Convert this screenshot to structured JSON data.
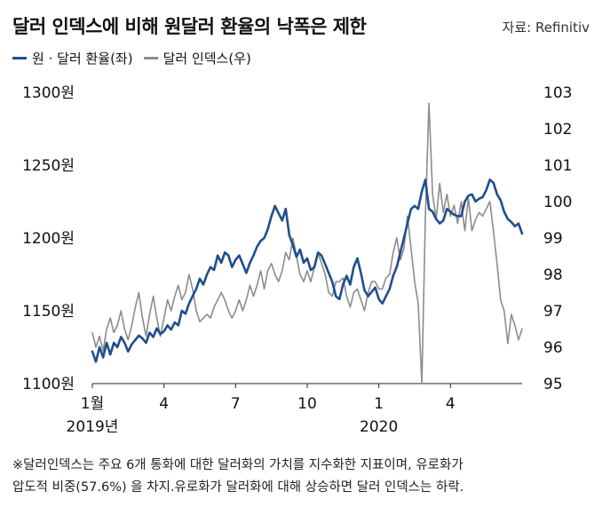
{
  "title": "달러 인덱스에 비해 원달러 환율의 낙폭은 제한",
  "source": "자료: Refinitiv",
  "colors": {
    "krw": "#1f4e8c",
    "dxy": "#8c8c8c"
  },
  "note_lines": [
    "※달러인덱스는 주요 6개 통화에 대한 달러화의 가치를 지수화한 지표이며, 유로화가",
    "압도적 비중(57.6%) 을 차지.유로화가 달러화에 대해 상승하면 달러 인덱스는 하락."
  ],
  "chart_data": {
    "type": "line",
    "title": "달러 인덱스에 비해 원달러 환율의 낙폭은 제한",
    "x_ticks": [
      {
        "label": "1월",
        "sublabel": "2019년",
        "t": 0
      },
      {
        "label": "4",
        "t": 3
      },
      {
        "label": "7",
        "t": 6
      },
      {
        "label": "10",
        "t": 9
      },
      {
        "label": "1",
        "sublabel": "2020",
        "t": 12
      },
      {
        "label": "4",
        "t": 15
      }
    ],
    "x_range": [
      0,
      18
    ],
    "y_left": {
      "ticks": [
        "1300원",
        "1250원",
        "1200원",
        "1150원",
        "1100원"
      ],
      "values": [
        1300,
        1250,
        1200,
        1150,
        1100
      ],
      "range": [
        1100,
        1300
      ]
    },
    "y_right": {
      "ticks": [
        "103",
        "102",
        "101",
        "100",
        "99",
        "98",
        "97",
        "96",
        "95"
      ],
      "values": [
        103,
        102,
        101,
        100,
        99,
        98,
        97,
        96,
        95
      ],
      "range": [
        95,
        103
      ]
    },
    "series": [
      {
        "name": "원 · 달러 환율(좌)",
        "axis": "left",
        "x": [
          0.0,
          0.15,
          0.3,
          0.45,
          0.6,
          0.75,
          0.9,
          1.05,
          1.2,
          1.35,
          1.5,
          1.65,
          1.8,
          1.95,
          2.1,
          2.25,
          2.4,
          2.55,
          2.7,
          2.85,
          3.0,
          3.15,
          3.3,
          3.45,
          3.6,
          3.75,
          3.9,
          4.05,
          4.2,
          4.35,
          4.5,
          4.65,
          4.8,
          4.95,
          5.1,
          5.25,
          5.4,
          5.55,
          5.7,
          5.85,
          6.0,
          6.15,
          6.3,
          6.45,
          6.6,
          6.75,
          6.9,
          7.05,
          7.2,
          7.35,
          7.5,
          7.65,
          7.8,
          7.95,
          8.1,
          8.25,
          8.4,
          8.55,
          8.7,
          8.85,
          9.0,
          9.15,
          9.3,
          9.45,
          9.6,
          9.75,
          9.9,
          10.05,
          10.2,
          10.35,
          10.5,
          10.65,
          10.8,
          10.95,
          11.1,
          11.25,
          11.4,
          11.55,
          11.7,
          11.85,
          12.0,
          12.15,
          12.3,
          12.45,
          12.6,
          12.75,
          12.9,
          13.05,
          13.2,
          13.35,
          13.5,
          13.65,
          13.8,
          13.95,
          14.1,
          14.25,
          14.4,
          14.55,
          14.7,
          14.85,
          15.0,
          15.15,
          15.3,
          15.45,
          15.6,
          15.75,
          15.9,
          16.05,
          16.2,
          16.35,
          16.5,
          16.65,
          16.8,
          16.95,
          17.1,
          17.25,
          17.4,
          17.55,
          17.7,
          17.85,
          18.0
        ],
        "values": [
          1122,
          1115,
          1125,
          1118,
          1128,
          1120,
          1128,
          1125,
          1132,
          1128,
          1122,
          1127,
          1130,
          1133,
          1131,
          1128,
          1135,
          1132,
          1138,
          1134,
          1136,
          1140,
          1137,
          1142,
          1140,
          1150,
          1148,
          1155,
          1160,
          1165,
          1172,
          1168,
          1175,
          1180,
          1178,
          1188,
          1183,
          1190,
          1188,
          1180,
          1185,
          1188,
          1182,
          1176,
          1183,
          1188,
          1194,
          1198,
          1200,
          1206,
          1215,
          1222,
          1217,
          1212,
          1220,
          1202,
          1195,
          1187,
          1192,
          1183,
          1186,
          1178,
          1180,
          1190,
          1188,
          1182,
          1176,
          1170,
          1160,
          1158,
          1168,
          1174,
          1168,
          1180,
          1186,
          1176,
          1164,
          1160,
          1163,
          1166,
          1158,
          1155,
          1160,
          1165,
          1174,
          1180,
          1190,
          1200,
          1210,
          1220,
          1222,
          1220,
          1232,
          1240,
          1220,
          1218,
          1213,
          1210,
          1212,
          1220,
          1218,
          1216,
          1215,
          1215,
          1225,
          1229,
          1230,
          1225,
          1227,
          1228,
          1233,
          1240,
          1238,
          1230,
          1226,
          1218,
          1213,
          1211,
          1208,
          1210,
          1203
        ]
      },
      {
        "name": "달러 인덱스(우)",
        "axis": "right",
        "x": [
          0.0,
          0.15,
          0.3,
          0.45,
          0.6,
          0.75,
          0.9,
          1.05,
          1.2,
          1.35,
          1.5,
          1.65,
          1.8,
          1.95,
          2.1,
          2.25,
          2.4,
          2.55,
          2.7,
          2.85,
          3.0,
          3.15,
          3.3,
          3.45,
          3.6,
          3.75,
          3.9,
          4.05,
          4.2,
          4.35,
          4.5,
          4.65,
          4.8,
          4.95,
          5.1,
          5.25,
          5.4,
          5.55,
          5.7,
          5.85,
          6.0,
          6.15,
          6.3,
          6.45,
          6.6,
          6.75,
          6.9,
          7.05,
          7.2,
          7.35,
          7.5,
          7.65,
          7.8,
          7.95,
          8.1,
          8.25,
          8.4,
          8.55,
          8.7,
          8.85,
          9.0,
          9.15,
          9.3,
          9.45,
          9.6,
          9.75,
          9.9,
          10.05,
          10.2,
          10.35,
          10.5,
          10.65,
          10.8,
          10.95,
          11.1,
          11.25,
          11.4,
          11.55,
          11.7,
          11.85,
          12.0,
          12.15,
          12.3,
          12.45,
          12.6,
          12.75,
          12.9,
          13.05,
          13.2,
          13.35,
          13.5,
          13.65,
          13.8,
          13.95,
          14.1,
          14.25,
          14.4,
          14.55,
          14.7,
          14.85,
          15.0,
          15.15,
          15.3,
          15.45,
          15.6,
          15.75,
          15.9,
          16.05,
          16.2,
          16.35,
          16.5,
          16.65,
          16.8,
          16.95,
          17.1,
          17.25,
          17.4,
          17.55,
          17.7,
          17.85,
          18.0
        ],
        "values": [
          96.4,
          96.0,
          96.3,
          95.9,
          96.5,
          96.8,
          96.4,
          96.6,
          97.0,
          96.5,
          96.2,
          96.6,
          97.1,
          97.5,
          96.8,
          96.3,
          96.9,
          97.4,
          96.8,
          96.3,
          96.8,
          97.3,
          97.0,
          97.4,
          97.7,
          97.3,
          97.5,
          98.0,
          97.6,
          97.0,
          96.7,
          96.8,
          96.9,
          96.8,
          97.1,
          97.3,
          97.5,
          97.3,
          97.0,
          96.8,
          97.0,
          97.3,
          97.0,
          97.3,
          97.7,
          97.4,
          97.7,
          98.1,
          97.6,
          98.1,
          98.3,
          98.0,
          97.8,
          98.1,
          98.6,
          98.4,
          99.0,
          98.5,
          98.0,
          97.8,
          98.1,
          97.8,
          98.2,
          98.6,
          98.3,
          98.0,
          97.5,
          97.4,
          97.8,
          97.8,
          97.9,
          97.4,
          97.1,
          97.5,
          97.6,
          97.3,
          97.0,
          97.5,
          97.8,
          97.8,
          97.6,
          97.6,
          97.9,
          98.0,
          98.6,
          99.0,
          98.4,
          98.7,
          99.6,
          98.7,
          97.8,
          97.2,
          95.0,
          99.6,
          102.7,
          100.2,
          99.5,
          100.5,
          99.7,
          100.2,
          99.6,
          99.9,
          99.4,
          100.0,
          99.2,
          100.1,
          99.2,
          99.5,
          99.7,
          99.6,
          99.8,
          100.0,
          99.2,
          98.3,
          97.3,
          97.0,
          96.1,
          96.9,
          96.6,
          96.2,
          96.5
        ]
      }
    ]
  }
}
